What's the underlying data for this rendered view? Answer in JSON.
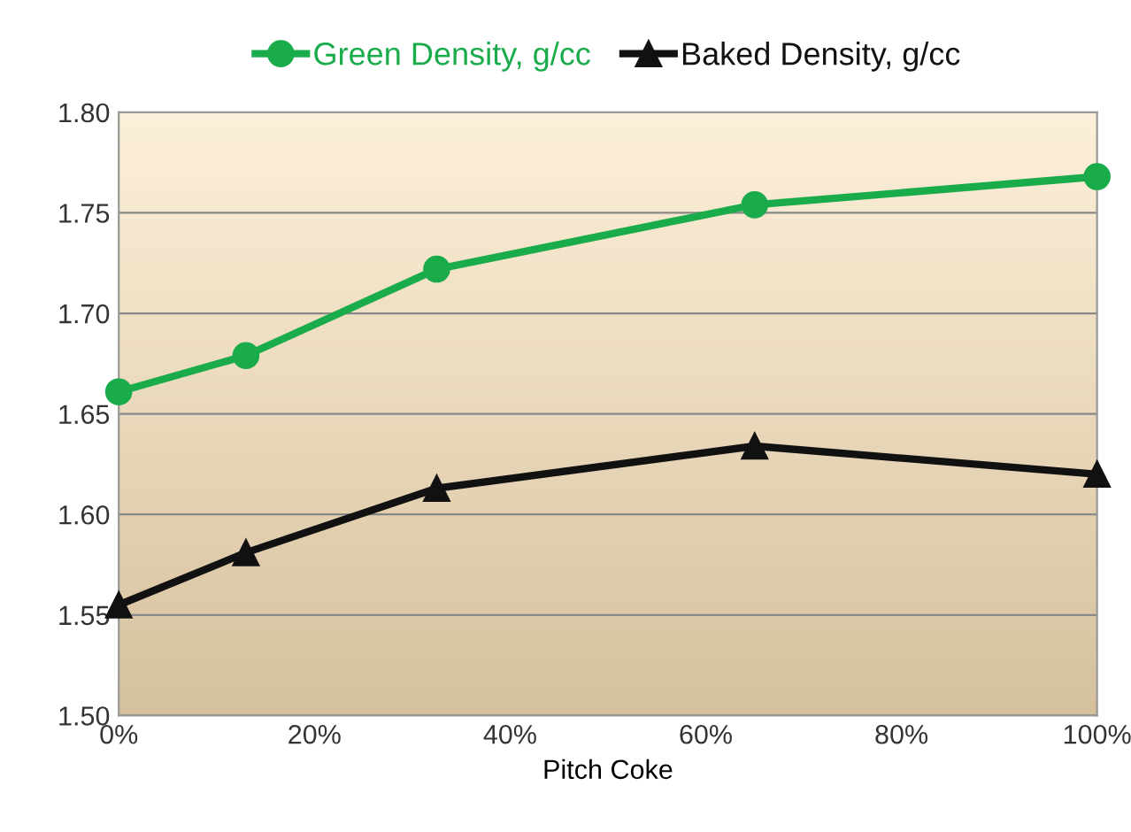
{
  "chart_data": {
    "type": "line",
    "xlabel": "Pitch Coke",
    "x": [
      0,
      13,
      32.5,
      65,
      100
    ],
    "series": [
      {
        "name": "Green Density, g/cc",
        "color": "#1aab4b",
        "marker": "circle",
        "values": [
          1.661,
          1.679,
          1.722,
          1.754,
          1.768
        ]
      },
      {
        "name": "Baked Density, g/cc",
        "color": "#111111",
        "marker": "triangle",
        "values": [
          1.555,
          1.581,
          1.613,
          1.634,
          1.62
        ]
      }
    ],
    "xlim": [
      0,
      100
    ],
    "xticks": [
      {
        "value": 0,
        "label": "0%"
      },
      {
        "value": 20,
        "label": "20%"
      },
      {
        "value": 40,
        "label": "40%"
      },
      {
        "value": 60,
        "label": "60%"
      },
      {
        "value": 80,
        "label": "80%"
      },
      {
        "value": 100,
        "label": "100%"
      }
    ],
    "ylim": [
      1.5,
      1.8
    ],
    "yticks": [
      {
        "value": 1.5,
        "label": "1.50"
      },
      {
        "value": 1.55,
        "label": "1.55"
      },
      {
        "value": 1.6,
        "label": "1.60"
      },
      {
        "value": 1.65,
        "label": "1.65"
      },
      {
        "value": 1.7,
        "label": "1.70"
      },
      {
        "value": 1.75,
        "label": "1.75"
      },
      {
        "value": 1.8,
        "label": "1.80"
      }
    ],
    "grid": "y",
    "legend": "top",
    "line_style": "solid"
  }
}
